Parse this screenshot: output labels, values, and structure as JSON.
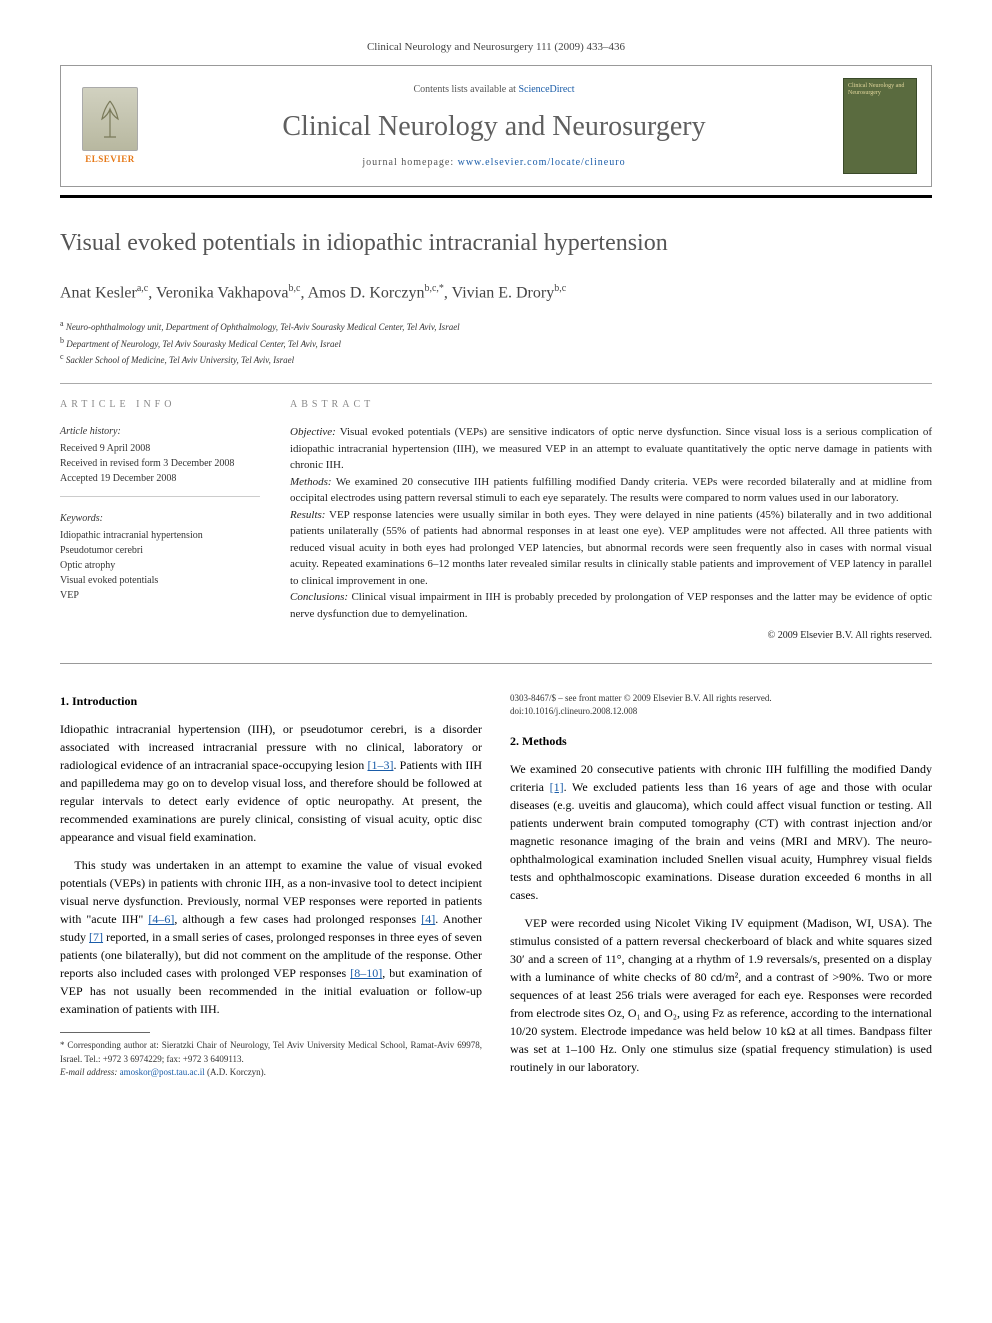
{
  "header": {
    "citation": "Clinical Neurology and Neurosurgery 111 (2009) 433–436",
    "contents_prefix": "Contents lists available at ",
    "contents_link": "ScienceDirect",
    "journal_name": "Clinical Neurology and Neurosurgery",
    "homepage_prefix": "journal homepage: ",
    "homepage_url": "www.elsevier.com/locate/clineuro",
    "elsevier_label": "ELSEVIER",
    "cover_text": "Clinical Neurology and Neurosurgery"
  },
  "title": "Visual evoked potentials in idiopathic intracranial hypertension",
  "authors_html": "Anat Kesler<sup>a,c</sup>, Veronika Vakhapova<sup>b,c</sup>, Amos D. Korczyn<sup>b,c,*</sup>, Vivian E. Drory<sup>b,c</sup>",
  "affiliations": [
    {
      "sup": "a",
      "text": "Neuro-ophthalmology unit, Department of Ophthalmology, Tel-Aviv Sourasky Medical Center, Tel Aviv, Israel"
    },
    {
      "sup": "b",
      "text": "Department of Neurology, Tel Aviv Sourasky Medical Center, Tel Aviv, Israel"
    },
    {
      "sup": "c",
      "text": "Sackler School of Medicine, Tel Aviv University, Tel Aviv, Israel"
    }
  ],
  "info_label": "article info",
  "abstract_label": "abstract",
  "history": {
    "hdr": "Article history:",
    "lines": [
      "Received 9 April 2008",
      "Received in revised form 3 December 2008",
      "Accepted 19 December 2008"
    ]
  },
  "keywords": {
    "hdr": "Keywords:",
    "items": [
      "Idiopathic intracranial hypertension",
      "Pseudotumor cerebri",
      "Optic atrophy",
      "Visual evoked potentials",
      "VEP"
    ]
  },
  "abstract": {
    "objective_lbl": "Objective:",
    "objective": " Visual evoked potentials (VEPs) are sensitive indicators of optic nerve dysfunction. Since visual loss is a serious complication of idiopathic intracranial hypertension (IIH), we measured VEP in an attempt to evaluate quantitatively the optic nerve damage in patients with chronic IIH.",
    "methods_lbl": "Methods:",
    "methods": " We examined 20 consecutive IIH patients fulfilling modified Dandy criteria. VEPs were recorded bilaterally and at midline from occipital electrodes using pattern reversal stimuli to each eye separately. The results were compared to norm values used in our laboratory.",
    "results_lbl": "Results:",
    "results": " VEP response latencies were usually similar in both eyes. They were delayed in nine patients (45%) bilaterally and in two additional patients unilaterally (55% of patients had abnormal responses in at least one eye). VEP amplitudes were not affected. All three patients with reduced visual acuity in both eyes had prolonged VEP latencies, but abnormal records were seen frequently also in cases with normal visual acuity. Repeated examinations 6–12 months later revealed similar results in clinically stable patients and improvement of VEP latency in parallel to clinical improvement in one.",
    "conclusions_lbl": "Conclusions:",
    "conclusions": " Clinical visual impairment in IIH is probably preceded by prolongation of VEP responses and the latter may be evidence of optic nerve dysfunction due to demyelination.",
    "copyright": "© 2009 Elsevier B.V. All rights reserved."
  },
  "sections": {
    "s1_title": "1. Introduction",
    "s1_p1a": "Idiopathic intracranial hypertension (IIH), or pseudotumor cerebri, is a disorder associated with increased intracranial pressure with no clinical, laboratory or radiological evidence of an intracranial space-occupying lesion ",
    "s1_p1_ref1": "[1–3]",
    "s1_p1b": ". Patients with IIH and papilledema may go on to develop visual loss, and therefore should be followed at regular intervals to detect early evidence of optic neuropathy. At present, the recommended examinations are purely clinical, consisting of visual acuity, optic disc appearance and visual field examination.",
    "s1_p2a": "This study was undertaken in an attempt to examine the value of visual evoked potentials (VEPs) in patients with chronic IIH, as a non-invasive tool to detect incipient visual nerve dysfunction. Previously, normal VEP responses were reported in patients with \"acute IIH\" ",
    "s1_p2_ref1": "[4–6]",
    "s1_p2b": ", although a few cases had prolonged responses ",
    "s1_p2_ref2": "[4]",
    "s1_p2c": ". Another study ",
    "s1_p2_ref3": "[7]",
    "s1_p2d": " reported, in a small series of cases, prolonged responses in three eyes of seven patients (one bilaterally), but did not comment on the amplitude of the response. Other reports also included cases with prolonged VEP responses ",
    "s1_p2_ref4": "[8–10]",
    "s1_p2e": ", but examination of VEP has not usually been recommended in the initial evaluation or follow-up examination of patients with IIH.",
    "s2_title": "2. Methods",
    "s2_p1a": "We examined 20 consecutive patients with chronic IIH fulfilling the modified Dandy criteria ",
    "s2_p1_ref1": "[1]",
    "s2_p1b": ". We excluded patients less than 16 years of age and those with ocular diseases (e.g. uveitis and glaucoma), which could affect visual function or testing. All patients underwent brain computed tomography (CT) with contrast injection and/or magnetic resonance imaging of the brain and veins (MRI and MRV). The neuro-ophthalmological examination included Snellen visual acuity, Humphrey visual fields tests and ophthalmoscopic examinations. Disease duration exceeded 6 months in all cases.",
    "s2_p2": "VEP were recorded using Nicolet Viking IV equipment (Madison, WI, USA). The stimulus consisted of a pattern reversal checkerboard of black and white squares sized 30′ and a screen of 11°, changing at a rhythm of 1.9 reversals/s, presented on a display with a luminance of white checks of 80 cd/m², and a contrast of >90%. Two or more sequences of at least 256 trials were averaged for each eye. Responses were recorded from electrode sites Oz, O₁ and O₂, using Fz as reference, according to the international 10/20 system. Electrode impedance was held below 10 kΩ at all times. Bandpass filter was set at 1–100 Hz. Only one stimulus size (spatial frequency stimulation) is used routinely in our laboratory."
  },
  "footnote": {
    "star": "*",
    "text": " Corresponding author at: Sieratzki Chair of Neurology, Tel Aviv University Medical School, Ramat-Aviv 69978, Israel. Tel.: +972 3 6974229; fax: +972 3 6409113.",
    "email_lbl": "E-mail address: ",
    "email": "amoskor@post.tau.ac.il",
    "email_who": " (A.D. Korczyn)."
  },
  "doi": {
    "line1": "0303-8467/$ – see front matter © 2009 Elsevier B.V. All rights reserved.",
    "line2": "doi:10.1016/j.clineuro.2008.12.008"
  }
}
